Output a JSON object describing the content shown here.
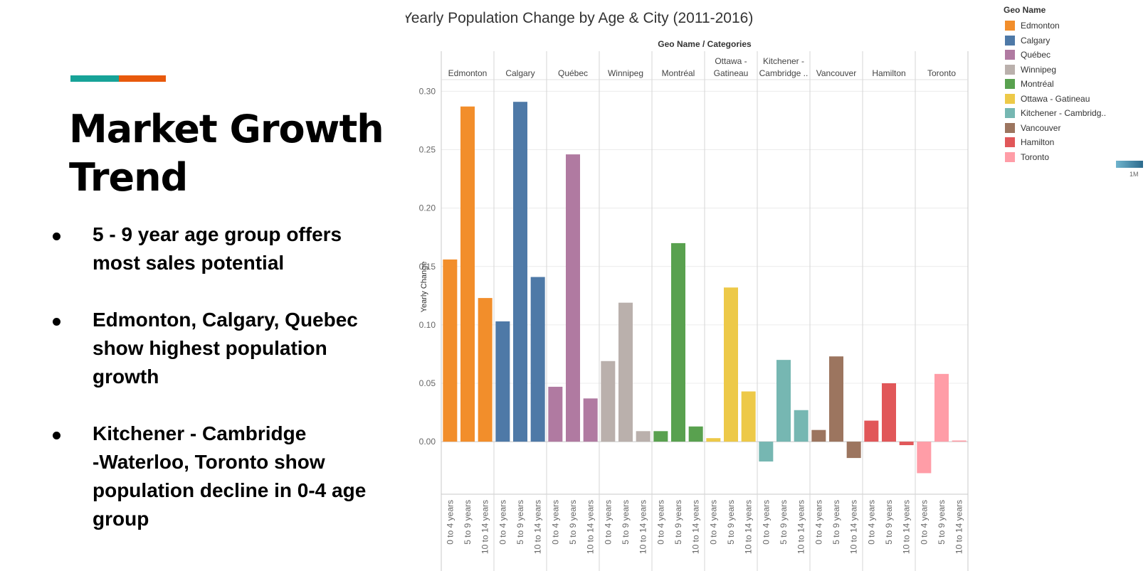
{
  "slide": {
    "title_line1": "Market Growth",
    "title_line2": "Trend",
    "accent_colors": {
      "teal": "#17A398",
      "orange": "#E8590C"
    },
    "bullets": [
      {
        "line1": "5 - 9  year age group offers",
        "line2": "most sales potential",
        "line3": "",
        "line4": ""
      },
      {
        "line1": "Edmonton, Calgary, Quebec",
        "line2": "show highest population",
        "line3": "growth",
        "line4": ""
      },
      {
        "line1": "Kitchener - Cambridge",
        "line2": "-Waterloo, Toronto show",
        "line3": "population decline in 0-4 age",
        "line4": "group"
      }
    ]
  },
  "legend": {
    "title": "Geo Name",
    "size_label": "1M",
    "items": [
      {
        "label": "Edmonton",
        "color": "#F28E2B"
      },
      {
        "label": "Calgary",
        "color": "#4E79A7"
      },
      {
        "label": "Québec",
        "color": "#B07AA1"
      },
      {
        "label": "Winnipeg",
        "color": "#BAB0AC"
      },
      {
        "label": "Montréal",
        "color": "#59A14F"
      },
      {
        "label": "Ottawa - Gatineau",
        "color": "#EDC948"
      },
      {
        "label": "Kitchener - Cambridg..",
        "color": "#76B7B2"
      },
      {
        "label": "Vancouver",
        "color": "#9C755F"
      },
      {
        "label": "Hamilton",
        "color": "#E15759"
      },
      {
        "label": "Toronto",
        "color": "#FF9DA7"
      }
    ]
  },
  "chart_data": {
    "type": "bar",
    "title": "Yearly Population Change by Age & City (2011-2016)",
    "header": "Geo Name  /  Categories",
    "ylabel": "Yearly Change",
    "ylim": [
      -0.045,
      0.31
    ],
    "yticks": [
      "0.00",
      "0.05",
      "0.10",
      "0.15",
      "0.20",
      "0.25",
      "0.30"
    ],
    "categories": [
      "0 to 4 years",
      "5 to 9 years",
      "10 to 14 years"
    ],
    "grid": true,
    "legend_position": "right",
    "panels": [
      {
        "name_line1": "Edmonton",
        "name_line2": "",
        "color": "#F28E2B",
        "values": [
          0.156,
          0.287,
          0.123
        ]
      },
      {
        "name_line1": "Calgary",
        "name_line2": "",
        "color": "#4E79A7",
        "values": [
          0.103,
          0.291,
          0.141
        ]
      },
      {
        "name_line1": "Québec",
        "name_line2": "",
        "color": "#B07AA1",
        "values": [
          0.047,
          0.246,
          0.037
        ]
      },
      {
        "name_line1": "Winnipeg",
        "name_line2": "",
        "color": "#BAB0AC",
        "values": [
          0.069,
          0.119,
          0.009
        ]
      },
      {
        "name_line1": "Montréal",
        "name_line2": "",
        "color": "#59A14F",
        "values": [
          0.009,
          0.17,
          0.013
        ]
      },
      {
        "name_line1": "Ottawa -",
        "name_line2": "Gatineau",
        "color": "#EDC948",
        "values": [
          0.003,
          0.132,
          0.043
        ]
      },
      {
        "name_line1": "Kitchener -",
        "name_line2": "Cambridge ..",
        "color": "#76B7B2",
        "values": [
          -0.017,
          0.07,
          0.027
        ]
      },
      {
        "name_line1": "Vancouver",
        "name_line2": "",
        "color": "#9C755F",
        "values": [
          0.01,
          0.073,
          -0.014
        ]
      },
      {
        "name_line1": "Hamilton",
        "name_line2": "",
        "color": "#E15759",
        "values": [
          0.018,
          0.05,
          -0.003
        ]
      },
      {
        "name_line1": "Toronto",
        "name_line2": "",
        "color": "#FF9DA7",
        "values": [
          -0.027,
          0.058,
          0.001
        ]
      }
    ]
  }
}
